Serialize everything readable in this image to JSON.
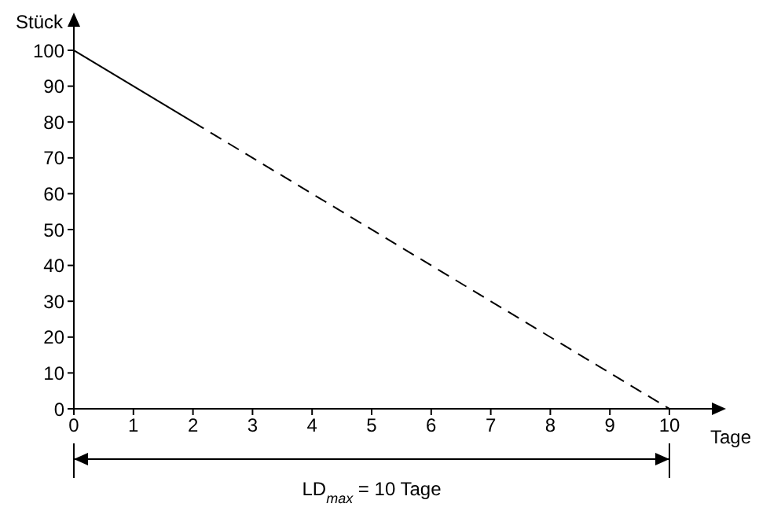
{
  "chart_data": {
    "type": "line",
    "xlabel": "Tage",
    "ylabel": "Stück",
    "xlim": [
      0,
      10
    ],
    "xticks": [
      0,
      1,
      2,
      3,
      4,
      5,
      6,
      7,
      8,
      9,
      10
    ],
    "ylim": [
      0,
      100
    ],
    "yticks": [
      0,
      10,
      20,
      30,
      40,
      50,
      60,
      70,
      80,
      90,
      100
    ],
    "grid": false,
    "series": [
      {
        "color": "#000000",
        "x": [
          0,
          2
        ],
        "values": [
          100,
          80
        ],
        "line_style": "solid"
      },
      {
        "color": "#000000",
        "x": [
          2,
          10
        ],
        "values": [
          80,
          0
        ],
        "line_style": "dashed"
      }
    ],
    "annotations": [
      "LD$_{max}$ = 10 Tage"
    ]
  }
}
